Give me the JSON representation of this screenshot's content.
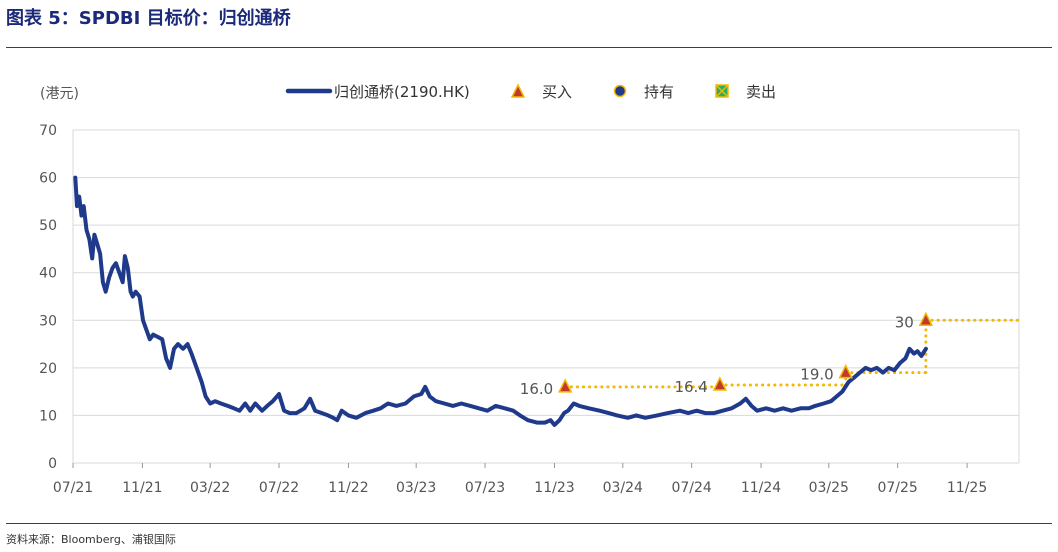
{
  "header": {
    "title": "图表 5：SPDBI 目标价：归创通桥"
  },
  "footer": {
    "source": "资料来源：Bloomberg、浦银国际"
  },
  "chart_data": {
    "type": "line",
    "unit_label": "(港元)",
    "ylim": [
      0,
      70
    ],
    "yticks": [
      "0",
      "10",
      "20",
      "30",
      "40",
      "50",
      "60",
      "70"
    ],
    "xlim": [
      "2021-07",
      "2026-02"
    ],
    "xticks": [
      "07/21",
      "11/21",
      "03/22",
      "07/22",
      "11/22",
      "03/23",
      "07/23",
      "11/23",
      "03/24",
      "07/24",
      "11/24",
      "03/25",
      "07/25",
      "11/25"
    ],
    "grid": true,
    "legend": {
      "placement": "top",
      "items": [
        {
          "label": "归创通桥(2190.HK)",
          "kind": "line"
        },
        {
          "label": "买入",
          "kind": "triangle"
        },
        {
          "label": "持有",
          "kind": "circle"
        },
        {
          "label": "卖出",
          "kind": "cross"
        }
      ]
    },
    "colors": {
      "series": "#1f3a8a",
      "target": "#f5b800",
      "buy_fill": "#c0392b",
      "hold_fill": "#1f3a8a",
      "sell_fill": "#27ae60",
      "marker_edge": "#f5b800",
      "grid": "#d9d9d9"
    },
    "series": [
      {
        "name": "归创通桥(2190.HK)",
        "points": [
          [
            "2021-07-05",
            60.0
          ],
          [
            "2021-07-08",
            54.0
          ],
          [
            "2021-07-12",
            56.0
          ],
          [
            "2021-07-16",
            52.0
          ],
          [
            "2021-07-20",
            54.0
          ],
          [
            "2021-07-25",
            49.0
          ],
          [
            "2021-07-30",
            47.0
          ],
          [
            "2021-08-04",
            43.0
          ],
          [
            "2021-08-08",
            48.0
          ],
          [
            "2021-08-13",
            46.0
          ],
          [
            "2021-08-18",
            44.0
          ],
          [
            "2021-08-23",
            38.0
          ],
          [
            "2021-08-28",
            36.0
          ],
          [
            "2021-09-03",
            39.0
          ],
          [
            "2021-09-09",
            41.0
          ],
          [
            "2021-09-15",
            42.0
          ],
          [
            "2021-09-21",
            40.0
          ],
          [
            "2021-09-27",
            38.0
          ],
          [
            "2021-10-01",
            43.5
          ],
          [
            "2021-10-06",
            41.0
          ],
          [
            "2021-10-11",
            36.0
          ],
          [
            "2021-10-15",
            35.0
          ],
          [
            "2021-10-20",
            36.0
          ],
          [
            "2021-10-27",
            35.0
          ],
          [
            "2021-11-02",
            30.0
          ],
          [
            "2021-11-08",
            28.0
          ],
          [
            "2021-11-14",
            26.0
          ],
          [
            "2021-11-20",
            27.0
          ],
          [
            "2021-11-28",
            26.5
          ],
          [
            "2021-12-06",
            26.0
          ],
          [
            "2021-12-13",
            22.0
          ],
          [
            "2021-12-20",
            20.0
          ],
          [
            "2021-12-27",
            24.0
          ],
          [
            "2022-01-03",
            25.0
          ],
          [
            "2022-01-12",
            24.0
          ],
          [
            "2022-01-20",
            25.0
          ],
          [
            "2022-01-27",
            23.0
          ],
          [
            "2022-02-02",
            21.0
          ],
          [
            "2022-02-08",
            19.0
          ],
          [
            "2022-02-14",
            17.0
          ],
          [
            "2022-02-21",
            14.0
          ],
          [
            "2022-03-01",
            12.5
          ],
          [
            "2022-03-10",
            13.0
          ],
          [
            "2022-03-20",
            12.5
          ],
          [
            "2022-04-01",
            12.0
          ],
          [
            "2022-04-12",
            11.5
          ],
          [
            "2022-04-22",
            11.0
          ],
          [
            "2022-05-02",
            12.5
          ],
          [
            "2022-05-11",
            11.0
          ],
          [
            "2022-05-20",
            12.5
          ],
          [
            "2022-06-01",
            11.0
          ],
          [
            "2022-06-10",
            12.0
          ],
          [
            "2022-06-20",
            13.0
          ],
          [
            "2022-07-01",
            14.5
          ],
          [
            "2022-07-10",
            11.0
          ],
          [
            "2022-07-20",
            10.5
          ],
          [
            "2022-08-01",
            10.5
          ],
          [
            "2022-08-15",
            11.5
          ],
          [
            "2022-08-25",
            13.5
          ],
          [
            "2022-09-03",
            11.0
          ],
          [
            "2022-09-15",
            10.5
          ],
          [
            "2022-09-26",
            10.0
          ],
          [
            "2022-10-05",
            9.5
          ],
          [
            "2022-10-12",
            9.0
          ],
          [
            "2022-10-20",
            11.0
          ],
          [
            "2022-11-01",
            10.0
          ],
          [
            "2022-11-15",
            9.5
          ],
          [
            "2022-12-01",
            10.5
          ],
          [
            "2022-12-15",
            11.0
          ],
          [
            "2022-12-28",
            11.5
          ],
          [
            "2023-01-10",
            12.5
          ],
          [
            "2023-01-25",
            12.0
          ],
          [
            "2023-02-10",
            12.5
          ],
          [
            "2023-02-25",
            14.0
          ],
          [
            "2023-03-10",
            14.5
          ],
          [
            "2023-03-17",
            16.0
          ],
          [
            "2023-03-25",
            14.0
          ],
          [
            "2023-04-05",
            13.0
          ],
          [
            "2023-04-20",
            12.5
          ],
          [
            "2023-05-05",
            12.0
          ],
          [
            "2023-05-20",
            12.5
          ],
          [
            "2023-06-05",
            12.0
          ],
          [
            "2023-06-20",
            11.5
          ],
          [
            "2023-07-05",
            11.0
          ],
          [
            "2023-07-20",
            12.0
          ],
          [
            "2023-08-05",
            11.5
          ],
          [
            "2023-08-20",
            11.0
          ],
          [
            "2023-09-01",
            10.0
          ],
          [
            "2023-09-15",
            9.0
          ],
          [
            "2023-10-01",
            8.5
          ],
          [
            "2023-10-15",
            8.5
          ],
          [
            "2023-10-25",
            9.0
          ],
          [
            "2023-11-01",
            8.0
          ],
          [
            "2023-11-10",
            9.0
          ],
          [
            "2023-11-18",
            10.5
          ],
          [
            "2023-11-25",
            11.0
          ],
          [
            "2023-12-05",
            12.5
          ],
          [
            "2023-12-15",
            12.0
          ],
          [
            "2024-01-01",
            11.5
          ],
          [
            "2024-01-20",
            11.0
          ],
          [
            "2024-02-05",
            10.5
          ],
          [
            "2024-02-20",
            10.0
          ],
          [
            "2024-03-10",
            9.5
          ],
          [
            "2024-03-25",
            10.0
          ],
          [
            "2024-04-10",
            9.5
          ],
          [
            "2024-05-01",
            10.0
          ],
          [
            "2024-05-20",
            10.5
          ],
          [
            "2024-06-10",
            11.0
          ],
          [
            "2024-06-25",
            10.5
          ],
          [
            "2024-07-10",
            11.0
          ],
          [
            "2024-07-25",
            10.5
          ],
          [
            "2024-08-10",
            10.5
          ],
          [
            "2024-08-25",
            11.0
          ],
          [
            "2024-09-10",
            11.5
          ],
          [
            "2024-09-25",
            12.5
          ],
          [
            "2024-10-05",
            13.5
          ],
          [
            "2024-10-15",
            12.0
          ],
          [
            "2024-10-25",
            11.0
          ],
          [
            "2024-11-10",
            11.5
          ],
          [
            "2024-11-25",
            11.0
          ],
          [
            "2024-12-10",
            11.5
          ],
          [
            "2024-12-25",
            11.0
          ],
          [
            "2025-01-10",
            11.5
          ],
          [
            "2025-01-25",
            11.5
          ],
          [
            "2025-02-05",
            12.0
          ],
          [
            "2025-02-20",
            12.5
          ],
          [
            "2025-03-05",
            13.0
          ],
          [
            "2025-03-15",
            14.0
          ],
          [
            "2025-03-25",
            15.0
          ],
          [
            "2025-04-05",
            17.0
          ],
          [
            "2025-04-15",
            18.0
          ],
          [
            "2025-04-25",
            19.0
          ],
          [
            "2025-05-05",
            20.0
          ],
          [
            "2025-05-15",
            19.5
          ],
          [
            "2025-05-25",
            20.0
          ],
          [
            "2025-06-05",
            19.0
          ],
          [
            "2025-06-15",
            20.0
          ],
          [
            "2025-06-25",
            19.5
          ],
          [
            "2025-07-05",
            21.0
          ],
          [
            "2025-07-15",
            22.0
          ],
          [
            "2025-07-22",
            24.0
          ],
          [
            "2025-07-30",
            23.0
          ],
          [
            "2025-08-05",
            23.5
          ],
          [
            "2025-08-12",
            22.5
          ],
          [
            "2025-08-20",
            24.0
          ]
        ]
      }
    ],
    "ratings": [
      {
        "date": "2023-11-20",
        "rating": "买入",
        "target": 16.0,
        "label": "16.0"
      },
      {
        "date": "2024-08-20",
        "rating": "买入",
        "target": 16.4,
        "label": "16.4"
      },
      {
        "date": "2025-03-31",
        "rating": "买入",
        "target": 19.0,
        "label": "19.0"
      },
      {
        "date": "2025-08-20",
        "rating": "买入",
        "target": 30.0,
        "label": "30"
      }
    ],
    "target_extends_to": "2026-02-01"
  }
}
